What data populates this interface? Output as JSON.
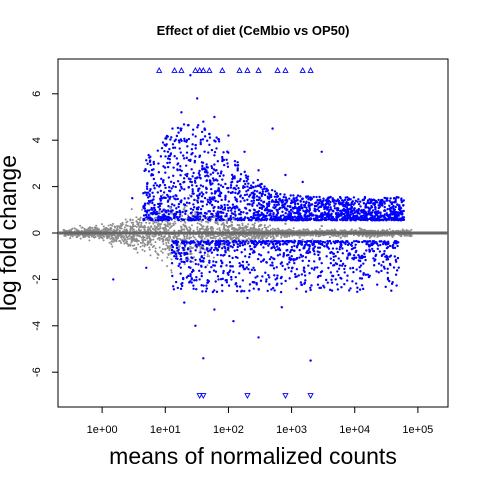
{
  "chart_data": {
    "type": "scatter",
    "title": "Effect of diet (CeMbio vs OP50)",
    "xlabel": "means of normalized counts",
    "ylabel": "log fold change",
    "x_scale": "log10",
    "xlim": [
      0.2,
      300000
    ],
    "ylim": [
      -7.5,
      7.5
    ],
    "x_ticks": [
      1,
      10,
      100,
      1000,
      10000,
      100000
    ],
    "x_tick_labels": [
      "1e+00",
      "1e+01",
      "1e+02",
      "1e+03",
      "1e+04",
      "1e+05"
    ],
    "y_ticks": [
      -6,
      -4,
      -2,
      0,
      2,
      4,
      6
    ],
    "y_tick_labels": [
      "-6",
      "-4",
      "-2",
      "0",
      "2",
      "4",
      "6"
    ],
    "hline": 0,
    "grid": false,
    "colors": {
      "not_significant": "#8c8c8c",
      "significant": "#0000ff",
      "zero_line": "#666666"
    },
    "series": [
      {
        "name": "",
        "color": "#8c8c8c",
        "description_points": [
          [
            0.3,
            0.1
          ],
          [
            0.5,
            -0.1
          ],
          [
            0.8,
            0.2
          ],
          [
            1.2,
            -0.2
          ],
          [
            2,
            0.3
          ],
          [
            3,
            -0.3
          ],
          [
            5,
            0.6
          ],
          [
            6,
            -0.5
          ],
          [
            8,
            0.9
          ],
          [
            10,
            -0.7
          ],
          [
            12,
            1.1
          ],
          [
            15,
            -0.8
          ],
          [
            20,
            1.0
          ],
          [
            25,
            -0.9
          ],
          [
            30,
            0.8
          ],
          [
            40,
            -0.6
          ],
          [
            60,
            0.7
          ],
          [
            80,
            -0.5
          ],
          [
            120,
            0.6
          ],
          [
            200,
            -0.4
          ],
          [
            300,
            0.5
          ],
          [
            500,
            -0.3
          ],
          [
            800,
            0.4
          ],
          [
            1500,
            -0.3
          ],
          [
            3000,
            0.3
          ],
          [
            6000,
            -0.2
          ],
          [
            12000,
            0.2
          ],
          [
            30000,
            -0.1
          ],
          [
            60000,
            0.1
          ]
        ]
      },
      {
        "name": "",
        "color": "#0000ff",
        "description_points": [
          [
            8,
            2.0
          ],
          [
            9,
            1.5
          ],
          [
            10,
            2.6
          ],
          [
            11,
            3.5
          ],
          [
            12,
            1.8
          ],
          [
            13,
            4.5
          ],
          [
            15,
            1.6
          ],
          [
            16,
            3.0
          ],
          [
            18,
            5.2
          ],
          [
            20,
            2.2
          ],
          [
            22,
            4.0
          ],
          [
            25,
            6.8
          ],
          [
            27,
            1.7
          ],
          [
            30,
            3.3
          ],
          [
            32,
            5.8
          ],
          [
            35,
            2.5
          ],
          [
            40,
            4.8
          ],
          [
            45,
            1.9
          ],
          [
            50,
            3.8
          ],
          [
            55,
            2.8
          ],
          [
            60,
            5.0
          ],
          [
            70,
            2.1
          ],
          [
            80,
            3.1
          ],
          [
            90,
            1.6
          ],
          [
            100,
            4.2
          ],
          [
            120,
            2.4
          ],
          [
            150,
            1.8
          ],
          [
            180,
            3.5
          ],
          [
            200,
            2.0
          ],
          [
            250,
            1.5
          ],
          [
            300,
            2.7
          ],
          [
            400,
            1.9
          ],
          [
            500,
            4.5
          ],
          [
            600,
            1.6
          ],
          [
            800,
            2.5
          ],
          [
            1000,
            1.4
          ],
          [
            1500,
            2.2
          ],
          [
            2000,
            1.2
          ],
          [
            3000,
            3.5
          ],
          [
            4000,
            1.0
          ],
          [
            6000,
            1.5
          ],
          [
            8000,
            0.9
          ],
          [
            15000,
            1.2
          ],
          [
            30000,
            0.8
          ],
          [
            15,
            -1.0
          ],
          [
            18,
            -2.2
          ],
          [
            20,
            -3.0
          ],
          [
            25,
            -1.5
          ],
          [
            30,
            -4.0
          ],
          [
            35,
            -2.0
          ],
          [
            40,
            -5.4
          ],
          [
            50,
            -1.2
          ],
          [
            60,
            -3.3
          ],
          [
            80,
            -2.5
          ],
          [
            100,
            -1.8
          ],
          [
            120,
            -3.8
          ],
          [
            150,
            -1.3
          ],
          [
            200,
            -2.8
          ],
          [
            250,
            -1.5
          ],
          [
            300,
            -4.5
          ],
          [
            400,
            -2.0
          ],
          [
            500,
            -1.4
          ],
          [
            700,
            -3.2
          ],
          [
            900,
            -1.5
          ],
          [
            1200,
            -2.4
          ],
          [
            1500,
            -1.2
          ],
          [
            2000,
            -5.5
          ],
          [
            3000,
            -1.3
          ],
          [
            5000,
            -2.0
          ],
          [
            8000,
            -0.9
          ],
          [
            15000,
            -1.8
          ],
          [
            25000,
            -0.8
          ],
          [
            40000,
            -0.6
          ],
          [
            1.5,
            -2.0
          ],
          [
            3,
            1.5
          ],
          [
            5,
            -1.5
          ]
        ]
      },
      {
        "name": "",
        "marker": "triangle-up",
        "color": "#0000ff",
        "x": [
          8,
          14,
          18,
          30,
          35,
          40,
          50,
          80,
          150,
          200,
          300,
          600,
          800,
          1500,
          2000
        ],
        "y": [
          7,
          7,
          7,
          7,
          7,
          7,
          7,
          7,
          7,
          7,
          7,
          7,
          7,
          7,
          7
        ]
      },
      {
        "name": "",
        "marker": "triangle-down",
        "color": "#0000ff",
        "x": [
          35,
          40,
          200,
          800,
          2000
        ],
        "y": [
          -7,
          -7,
          -7,
          -7,
          -7
        ]
      }
    ]
  }
}
